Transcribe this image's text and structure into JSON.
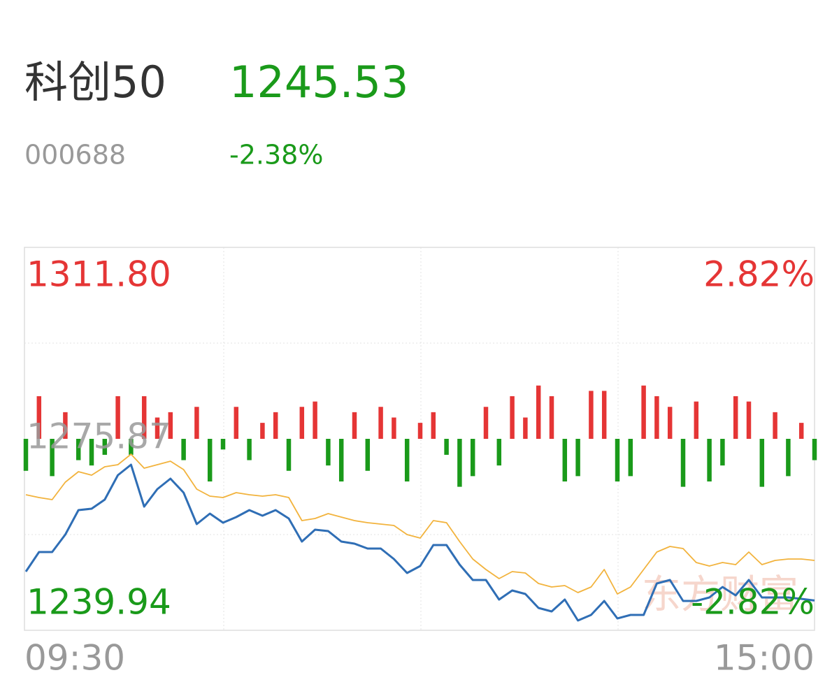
{
  "header": {
    "name": "科创50",
    "price": "1245.53",
    "code": "000688",
    "change": "-2.38%"
  },
  "chart_data": {
    "type": "line",
    "watermark": "东方财富",
    "x": [
      0,
      4,
      8,
      12,
      16,
      20,
      24,
      28,
      32,
      36,
      40,
      44,
      48,
      52,
      56,
      60,
      64,
      68,
      72,
      76,
      80,
      84,
      88,
      92,
      96,
      100,
      104,
      108,
      112,
      116,
      120,
      124,
      128,
      132,
      136,
      140,
      144,
      148,
      152,
      156,
      160,
      164,
      168,
      172,
      176,
      180,
      184,
      188,
      192,
      196,
      200,
      204,
      208,
      212,
      216,
      220,
      224,
      228,
      232,
      236,
      240
    ],
    "xlim": [
      0,
      240
    ],
    "xticks": [
      {
        "value": 0,
        "label": "09:30"
      },
      {
        "value": 240,
        "label": "15:00"
      }
    ],
    "ylim": [
      1239.94,
      1311.8
    ],
    "yticks": [
      1239.94,
      1275.87,
      {
        "value": 1311.8,
        "label": "1311.80"
      }
    ],
    "y2lim": [
      -2.82,
      2.82
    ],
    "y2ticks": [
      {
        "value": -2.82,
        "label": "-2.82%"
      },
      {
        "value": 2.82,
        "label": "2.82%"
      }
    ],
    "up_color": "#e53535",
    "down_color": "#1a9a1a",
    "flat_color": "#999999",
    "series": [
      {
        "color": "#2f6eb5",
        "values": [
          1250.96,
          1254.63,
          1254.63,
          1257.91,
          1262.49,
          1262.76,
          1264.46,
          1269.05,
          1271.02,
          1263.15,
          1266.43,
          1268.4,
          1265.77,
          1259.87,
          1261.84,
          1260.13,
          1261.18,
          1262.49,
          1261.45,
          1262.49,
          1260.92,
          1256.59,
          1258.82,
          1258.56,
          1256.59,
          1256.2,
          1255.28,
          1255.28,
          1253.32,
          1250.69,
          1252.0,
          1255.94,
          1255.94,
          1252.27,
          1249.38,
          1249.38,
          1245.71,
          1247.41,
          1246.76,
          1244.14,
          1243.48,
          1245.71,
          1241.78,
          1242.83,
          1245.45,
          1242.17,
          1242.83,
          1242.83,
          1248.73,
          1249.38,
          1245.45,
          1245.45,
          1246.1,
          1248.07,
          1246.5,
          1249.38,
          1246.1,
          1246.1,
          1246.1,
          1245.84,
          1245.53
        ]
      },
      {
        "color": "#f2b33d",
        "values": [
          1265.38,
          1264.86,
          1264.46,
          1267.74,
          1269.71,
          1269.05,
          1270.63,
          1271.02,
          1272.99,
          1270.36,
          1271.02,
          1271.67,
          1270.1,
          1266.43,
          1265.12,
          1264.86,
          1265.77,
          1265.38,
          1265.12,
          1265.38,
          1264.86,
          1260.53,
          1260.92,
          1261.84,
          1261.18,
          1260.53,
          1260.13,
          1259.87,
          1259.61,
          1257.91,
          1257.25,
          1260.53,
          1260.13,
          1256.59,
          1253.32,
          1251.35,
          1249.64,
          1250.96,
          1250.69,
          1248.73,
          1248.07,
          1248.33,
          1247.02,
          1248.07,
          1251.35,
          1246.76,
          1248.07,
          1251.35,
          1254.63,
          1255.68,
          1255.28,
          1252.66,
          1252.0,
          1252.66,
          1252.27,
          1254.63,
          1252.27,
          1253.05,
          1253.32,
          1253.32,
          1253.05
        ]
      }
    ],
    "bars": {
      "values": [
        -6,
        8,
        -7,
        5,
        -4,
        -5,
        -3,
        8,
        -3,
        8,
        4,
        5,
        -4,
        6,
        -8,
        -2,
        6,
        -4,
        3,
        5,
        -6,
        6,
        7,
        -5,
        -8,
        5,
        -6,
        6,
        4,
        -8,
        3,
        5,
        -3,
        -9,
        -7,
        6,
        -5,
        8,
        4,
        10,
        8,
        -8,
        -7,
        9,
        9,
        -8,
        -7,
        10,
        8,
        6,
        -9,
        7,
        -8,
        -5,
        8,
        7,
        -9,
        5,
        -7,
        3,
        -4
      ]
    }
  }
}
